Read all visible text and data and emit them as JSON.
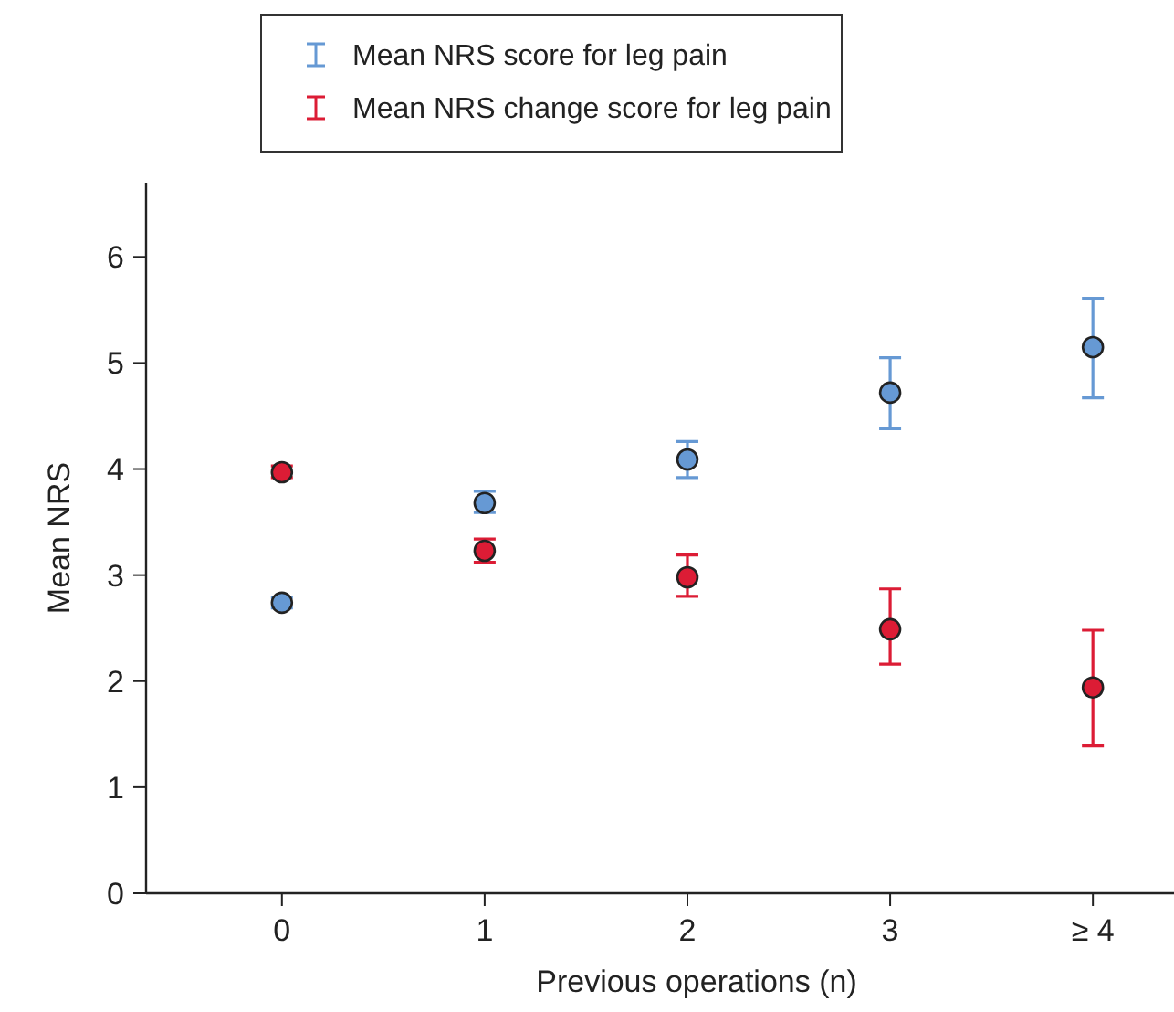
{
  "chart_data": {
    "type": "scatter",
    "xlabel": "Previous operations (n)",
    "ylabel": "Mean NRS",
    "categories": [
      "0",
      "1",
      "2",
      "3",
      "≥ 4"
    ],
    "ylim": [
      0,
      6.7
    ],
    "yticks": [
      0,
      1,
      2,
      3,
      4,
      5,
      6
    ],
    "legend": "top",
    "marker": "circle",
    "grid": false,
    "series": [
      {
        "name": "Mean NRS score for leg pain",
        "color": "#6699d4",
        "values": [
          2.74,
          3.68,
          4.09,
          4.72,
          5.15
        ],
        "errors": [
          [
            2.69,
            2.79
          ],
          [
            3.59,
            3.79
          ],
          [
            3.92,
            4.26
          ],
          [
            4.38,
            5.05
          ],
          [
            4.67,
            5.61
          ]
        ]
      },
      {
        "name": "Mean NRS change score for leg pain",
        "color": "#dc1c35",
        "values": [
          3.97,
          3.23,
          2.98,
          2.49,
          1.94
        ],
        "errors": [
          [
            3.92,
            4.03
          ],
          [
            3.12,
            3.34
          ],
          [
            2.8,
            3.19
          ],
          [
            2.16,
            2.87
          ],
          [
            1.39,
            2.48
          ]
        ]
      }
    ]
  }
}
